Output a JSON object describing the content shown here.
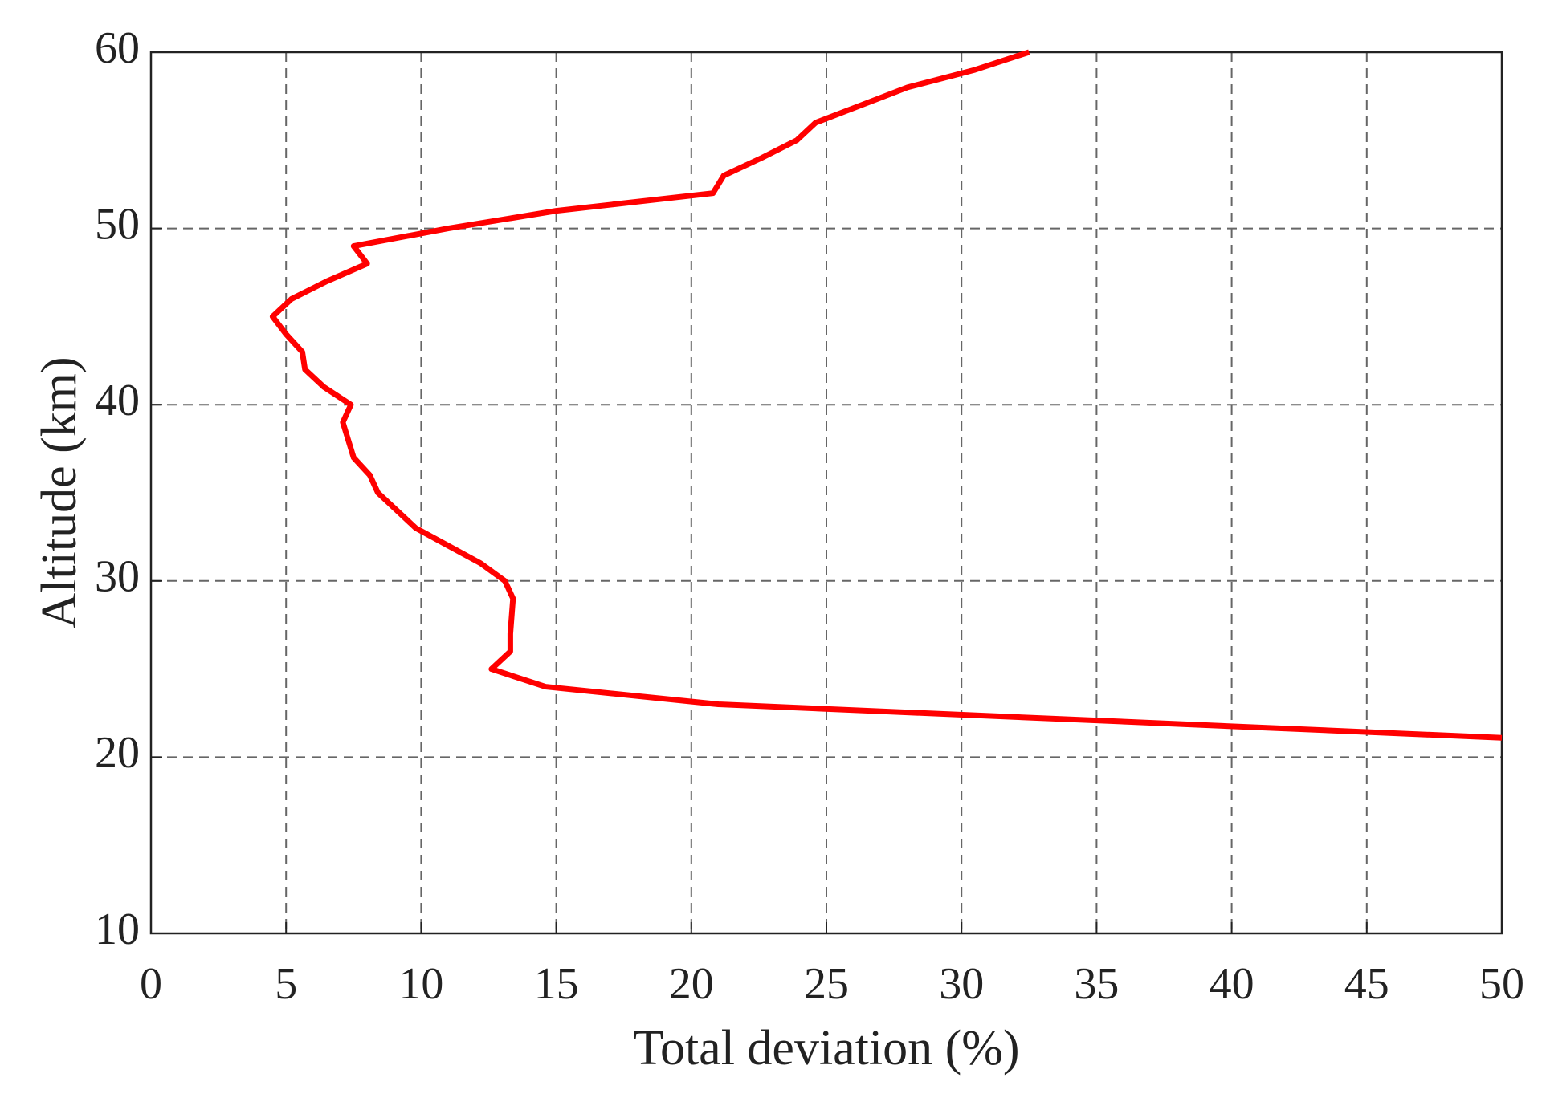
{
  "chart_data": {
    "type": "line",
    "xlabel": "Total deviation (%)",
    "ylabel": "Altitude (km)",
    "x": [
      32.5,
      30.5,
      28,
      26.3,
      24.6,
      23.9,
      22.6,
      21.2,
      20.8,
      15,
      11,
      7.5,
      8,
      6.5,
      5.2,
      4.5,
      5.0,
      5.6,
      5.7,
      6.4,
      7.4,
      7.1,
      7.5,
      8.1,
      8.4,
      9.1,
      9.8,
      11,
      12.2,
      13.1,
      13.4,
      13.3,
      13.3,
      12.6,
      14.6,
      21,
      50
    ],
    "values": [
      60,
      59,
      58,
      57,
      56,
      55,
      54,
      53,
      52,
      51,
      50,
      49,
      48,
      47,
      46,
      45,
      44,
      43,
      42,
      41,
      40,
      39,
      37,
      36,
      35,
      34,
      33,
      32,
      31,
      30,
      29,
      27,
      26,
      25,
      24,
      23,
      21.1
    ],
    "color": "#ff0000",
    "xlim": [
      0,
      50
    ],
    "xticks": [
      0,
      5,
      10,
      15,
      20,
      25,
      30,
      35,
      40,
      45,
      50
    ],
    "ylim": [
      10,
      60
    ],
    "yticks": [
      10,
      20,
      30,
      40,
      50,
      60
    ],
    "grid": true
  }
}
